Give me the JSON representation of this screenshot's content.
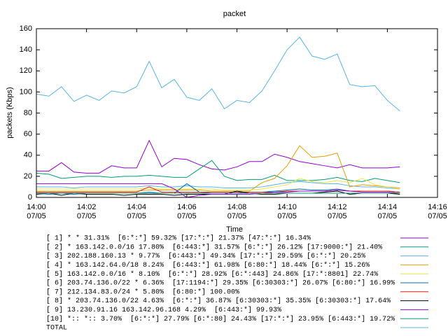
{
  "chart_data": {
    "type": "line",
    "title": "packet",
    "xlabel": "Time",
    "ylabel": "packets (Kbps)",
    "x": [
      "14:00:00",
      "14:00:30",
      "14:01:00",
      "14:01:30",
      "14:02:00",
      "14:02:30",
      "14:03:00",
      "14:03:30",
      "14:04:00",
      "14:04:30",
      "14:05:00",
      "14:05:30",
      "14:06:00",
      "14:06:30",
      "14:07:00",
      "14:07:30",
      "14:08:00",
      "14:08:30",
      "14:09:00",
      "14:09:30",
      "14:10:00",
      "14:10:30",
      "14:11:00",
      "14:11:30",
      "14:12:00",
      "14:12:30",
      "14:13:00",
      "14:13:30",
      "14:14:00",
      "14:14:30"
    ],
    "xlim": [
      "14:00",
      "14:16"
    ],
    "xticks": [
      "14:00",
      "14:02",
      "14:04",
      "14:06",
      "14:08",
      "14:10",
      "14:12",
      "14:14",
      "14:16"
    ],
    "xtick_dates": [
      "07/05",
      "07/05",
      "07/05",
      "07/05",
      "07/05",
      "07/05",
      "07/05",
      "07/05",
      "07/05"
    ],
    "ylim": [
      0,
      160
    ],
    "yticks": [
      0,
      20,
      40,
      60,
      80,
      100,
      120,
      140,
      160
    ],
    "series": [
      {
        "name": "[ 1] * * 31.31%  [6:*:*] 59.32% [17:*:*] 21.37% [47:*:*] 16.34%",
        "color": "#9400d3",
        "values": [
          25,
          25,
          33,
          24,
          23,
          23,
          30,
          28,
          28,
          54,
          29,
          37,
          36,
          31,
          27,
          26,
          29,
          34,
          34,
          41,
          38,
          34,
          32,
          30,
          28,
          31,
          28,
          28,
          28,
          29
        ]
      },
      {
        "name": "[ 2] * 163.142.0.0/16 17.80%  [6:443:*] 31.57% [6:*:*] 26.12% [17:9000:*] 21.40%",
        "color": "#009e73",
        "values": [
          23,
          22,
          18,
          19,
          20,
          20,
          19,
          20,
          20,
          21,
          20,
          19,
          19,
          27,
          35,
          20,
          16,
          17,
          17,
          21,
          16,
          16,
          16,
          17,
          19,
          16,
          15,
          18,
          16,
          14
        ]
      },
      {
        "name": "[ 3] 202.188.160.13 * 9.77%  [6:443:*] 49.34% [17:*:*] 29.59% [6:*:*] 20.25%",
        "color": "#56b4e9",
        "values": [
          10,
          10,
          10,
          9,
          10,
          10,
          10,
          10,
          10,
          11,
          10,
          10,
          11,
          10,
          10,
          9,
          9,
          9,
          10,
          12,
          14,
          15,
          14,
          13,
          13,
          11,
          10,
          10,
          9,
          8
        ]
      },
      {
        "name": "[ 4] * 163.142.64.0/18 8.24%  [6:443:*] 61.98% [6:80:*] 18.44% [6:*:*] 15.26%",
        "color": "#e69f00",
        "values": [
          6,
          6,
          6,
          6,
          6,
          6,
          6,
          6,
          6,
          7,
          7,
          7,
          7,
          7,
          6,
          6,
          6,
          6,
          14,
          18,
          30,
          49,
          38,
          39,
          42,
          10,
          12,
          11,
          10,
          9
        ]
      },
      {
        "name": "[ 5] 163.142.0.0/16 * 8.10%  [6:*:*] 28.92% [6:*:443] 24.86% [17:*:8801] 22.74%",
        "color": "#f0e442",
        "values": [
          8,
          8,
          8,
          8,
          8,
          8,
          8,
          8,
          8,
          9,
          8,
          8,
          8,
          8,
          8,
          7,
          7,
          7,
          8,
          10,
          12,
          18,
          15,
          14,
          16,
          14,
          18,
          12,
          10,
          8
        ]
      },
      {
        "name": "[ 6] 203.74.136.0/22 * 6.36%  [17:1194:*] 29.35% [6:30303:*] 26.07% [6:80:*] 16.99%",
        "color": "#0072b2",
        "values": [
          4,
          3,
          4,
          3,
          4,
          4,
          4,
          4,
          4,
          5,
          4,
          4,
          13,
          5,
          4,
          4,
          4,
          5,
          5,
          6,
          7,
          8,
          7,
          7,
          8,
          6,
          6,
          6,
          6,
          5
        ]
      },
      {
        "name": "[ 7] 212.134.83.0/24 * 5.80%  [6:80:*] 100.00%",
        "color": "#e51e10",
        "values": [
          5,
          5,
          5,
          5,
          5,
          5,
          5,
          5,
          5,
          10,
          5,
          5,
          5,
          5,
          5,
          5,
          5,
          5,
          5,
          5,
          6,
          6,
          6,
          6,
          7,
          6,
          6,
          6,
          6,
          5
        ]
      },
      {
        "name": "[ 8] * 203.74.136.0/22 4.63%  [6:*:*] 36.87% [6:30303:*] 35.35% [6:30303:*] 17.64%",
        "color": "#000000",
        "values": [
          3,
          4,
          2,
          4,
          3,
          3,
          3,
          2,
          3,
          3,
          3,
          2,
          3,
          3,
          3,
          3,
          6,
          4,
          3,
          3,
          4,
          4,
          4,
          5,
          6,
          3,
          4,
          4,
          4,
          3
        ]
      },
      {
        "name": "[ 9] 13.230.91.16 163.142.96.168 4.29%  [6:443:*] 99.93%",
        "color": "#9400d3",
        "values": [
          13,
          13,
          13,
          13,
          13,
          13,
          13,
          13,
          13,
          13,
          13,
          8,
          0,
          2,
          3,
          3,
          3,
          3,
          4,
          5,
          5,
          6,
          6,
          6,
          7,
          6,
          5,
          5,
          5,
          4
        ]
      },
      {
        "name": "[10] *:: *:: 3.70%  [6:*:*] 27.79% [6:*:80] 24.43% [17:*:*] 23.95% [6:443:*] 19.72%",
        "color": "#009e73",
        "values": [
          4,
          4,
          4,
          4,
          4,
          4,
          4,
          4,
          4,
          4,
          4,
          4,
          4,
          4,
          4,
          4,
          4,
          4,
          4,
          4,
          4,
          4,
          4,
          4,
          4,
          4,
          4,
          4,
          4,
          4
        ]
      },
      {
        "name": "TOTAL",
        "color": "#56b4e9",
        "values": [
          98,
          96,
          105,
          91,
          97,
          92,
          101,
          99,
          105,
          129,
          104,
          112,
          95,
          92,
          103,
          84,
          92,
          90,
          101,
          120,
          140,
          152,
          134,
          131,
          136,
          107,
          105,
          106,
          92,
          82
        ]
      }
    ]
  }
}
